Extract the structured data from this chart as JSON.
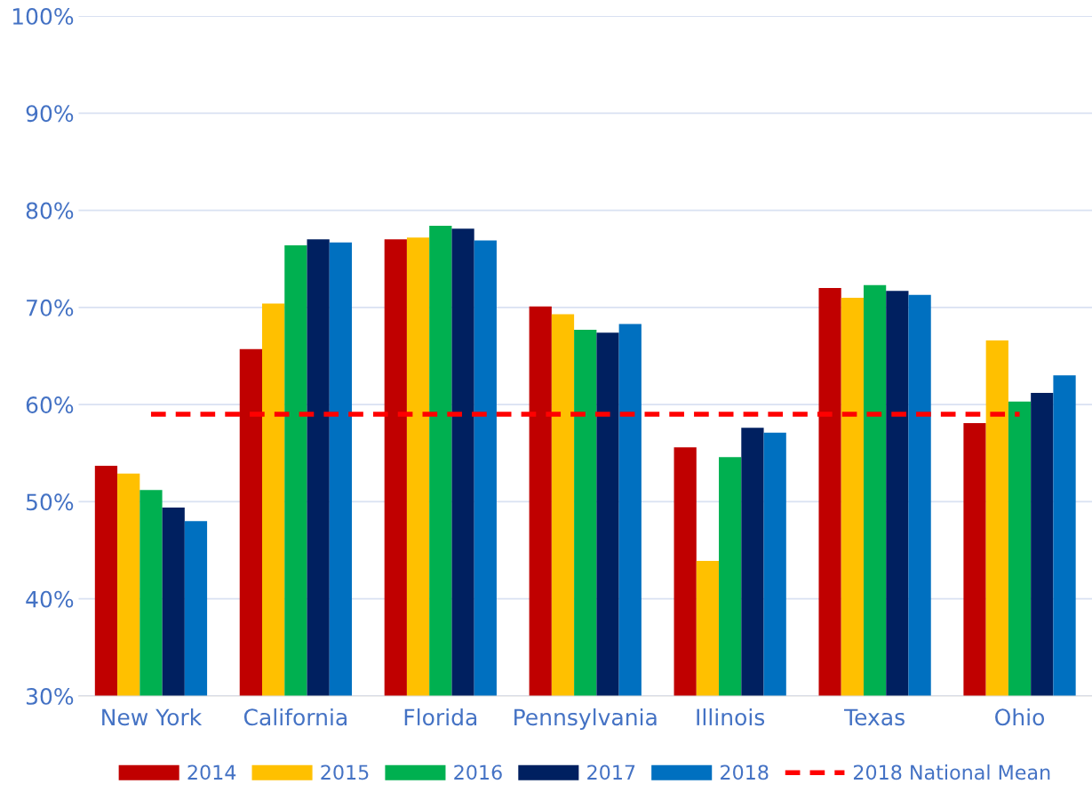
{
  "chart_data": {
    "type": "bar",
    "categories": [
      "New York",
      "California",
      "Florida",
      "Pennsylvania",
      "Illinois",
      "Texas",
      "Ohio"
    ],
    "series": [
      {
        "name": "2014",
        "color": "#c00000",
        "values": [
          53.7,
          65.7,
          77.0,
          70.1,
          55.6,
          72.0,
          58.1
        ]
      },
      {
        "name": "2015",
        "color": "#ffc000",
        "values": [
          52.9,
          70.4,
          77.2,
          69.3,
          43.9,
          71.0,
          66.6
        ]
      },
      {
        "name": "2016",
        "color": "#00b050",
        "values": [
          51.2,
          76.4,
          78.4,
          67.7,
          54.6,
          72.3,
          60.3
        ]
      },
      {
        "name": "2017",
        "color": "#002060",
        "values": [
          49.4,
          77.0,
          78.1,
          67.4,
          57.6,
          71.7,
          61.2
        ]
      },
      {
        "name": "2018",
        "color": "#0070c0",
        "values": [
          48.0,
          76.7,
          76.9,
          68.3,
          57.1,
          71.3,
          63.0
        ]
      },
      {
        "name": "2018 National Mean",
        "type": "line",
        "color": "#ff0000",
        "line_style": "dashed",
        "values": [
          59,
          59,
          59,
          59,
          59,
          59,
          59
        ]
      }
    ],
    "ylim": [
      30,
      100
    ],
    "yticks": [
      {
        "value": 30,
        "label": "30%"
      },
      {
        "value": 40,
        "label": "40%"
      },
      {
        "value": 50,
        "label": "50%"
      },
      {
        "value": 60,
        "label": "60%"
      },
      {
        "value": 70,
        "label": "70%"
      },
      {
        "value": 80,
        "label": "80%"
      },
      {
        "value": 90,
        "label": "90%"
      },
      {
        "value": 100,
        "label": "100%"
      }
    ],
    "grid": "y",
    "legend": "bottom"
  }
}
